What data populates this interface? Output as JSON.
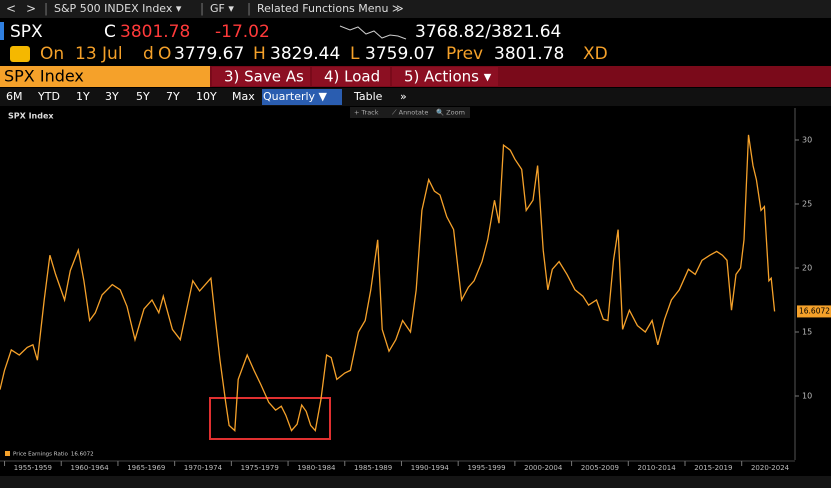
{
  "toolbar": {
    "back": "<",
    "forward": ">",
    "security": "S&P 500 INDEX Index ▾",
    "function": "GF ▾",
    "menu": "Related Functions Menu ≫"
  },
  "quote": {
    "ticker": "SPX",
    "close_label": "C",
    "close": "3801.78",
    "change": "-17.02",
    "range": "3768.82/3821.64"
  },
  "details": {
    "on": "On",
    "date": "13 Jul",
    "d": "d",
    "open_label": "O",
    "open": "3779.67",
    "high_label": "H",
    "high": "3829.44",
    "low_label": "L",
    "low": "3759.07",
    "prev_label": "Prev",
    "prev": "3801.78",
    "xd": "XD"
  },
  "command_bar": {
    "security": "SPX Index",
    "buttons": [
      "3) Save As",
      "4) Load",
      "5) Actions ▾"
    ]
  },
  "periods": [
    "6M",
    "YTD",
    "1Y",
    "3Y",
    "5Y",
    "7Y",
    "10Y",
    "Max",
    "Quarterly ▼",
    "Table",
    "»"
  ],
  "chart_tools": [
    "+ Track",
    "⟋ Annotate",
    "🔍 Zoom"
  ],
  "chart_data": {
    "type": "line",
    "title": "SPX Index",
    "x": [
      1954.6,
      1955.0,
      1955.6,
      1956.3,
      1957.0,
      1957.5,
      1957.9,
      1958.5,
      1959.0,
      1959.5,
      1960.3,
      1960.8,
      1961.5,
      1962.0,
      1962.5,
      1963.0,
      1963.6,
      1964.5,
      1965.2,
      1965.8,
      1966.5,
      1967.3,
      1968.0,
      1968.6,
      1969.0,
      1969.8,
      1970.5,
      1971.0,
      1971.6,
      1972.2,
      1972.7,
      1973.2,
      1973.6,
      1974.0,
      1974.5,
      1974.8,
      1975.3,
      1975.6,
      1976.4,
      1977.0,
      1977.6,
      1978.3,
      1978.9,
      1979.4,
      1979.8,
      1980.3,
      1980.8,
      1981.2,
      1981.6,
      1982.0,
      1982.4,
      1982.9,
      1983.4,
      1983.8,
      1984.3,
      1985.0,
      1985.5,
      1986.2,
      1986.8,
      1987.3,
      1987.9,
      1988.3,
      1988.9,
      1989.5,
      1990.1,
      1990.8,
      1991.3,
      1991.8,
      1992.4,
      1992.9,
      1993.4,
      1994.0,
      1994.6,
      1995.3,
      1995.9,
      1996.4,
      1997.1,
      1997.6,
      1998.2,
      1998.6,
      1999.0,
      1999.6,
      2000.0,
      2000.6,
      2001.0,
      2001.6,
      2002.0,
      2002.5,
      2002.9,
      2003.3,
      2003.9,
      2004.6,
      2005.3,
      2006.0,
      2006.5,
      2007.2,
      2007.8,
      2008.2,
      2008.7,
      2009.1,
      2009.5,
      2010.1,
      2010.8,
      2011.5,
      2012.1,
      2012.6,
      2013.2,
      2013.8,
      2014.5,
      2015.3,
      2015.9,
      2016.5,
      2017.2,
      2017.8,
      2018.3,
      2018.7,
      2019.1,
      2019.5,
      2019.9,
      2020.2,
      2020.6,
      2021.0,
      2021.3,
      2021.7,
      2022.0,
      2022.4,
      2022.6,
      2022.9
    ],
    "series": [
      {
        "name": "Price Earnings Ratio",
        "color": "#f5a12a",
        "values": [
          10.5,
          12.0,
          13.6,
          13.2,
          13.8,
          14.0,
          12.8,
          17.5,
          21.0,
          19.5,
          17.5,
          19.8,
          21.4,
          19.0,
          15.9,
          16.5,
          17.9,
          18.7,
          18.3,
          17.0,
          14.4,
          16.8,
          17.5,
          16.5,
          17.8,
          15.2,
          14.4,
          16.5,
          19.0,
          18.2,
          18.7,
          19.2,
          15.9,
          12.8,
          9.5,
          7.7,
          7.3,
          11.3,
          13.2,
          12.0,
          10.9,
          9.5,
          8.9,
          9.2,
          8.5,
          7.3,
          7.8,
          9.3,
          8.8,
          7.7,
          7.3,
          9.7,
          13.2,
          13.0,
          11.3,
          11.8,
          12.0,
          15.0,
          15.9,
          18.3,
          22.2,
          15.2,
          13.5,
          14.4,
          15.9,
          15.0,
          18.3,
          24.5,
          26.9,
          26.0,
          25.7,
          24.0,
          23.0,
          17.5,
          18.5,
          19.0,
          20.5,
          22.2,
          25.3,
          23.5,
          29.6,
          29.2,
          28.5,
          27.7,
          24.5,
          25.3,
          28.0,
          21.4,
          18.3,
          19.9,
          20.5,
          19.5,
          18.3,
          17.8,
          17.1,
          17.5,
          16.0,
          15.9,
          20.6,
          23.0,
          15.2,
          16.7,
          15.5,
          15.0,
          15.9,
          14.0,
          16.0,
          17.5,
          18.3,
          19.9,
          19.5,
          20.6,
          21.0,
          21.3,
          21.0,
          20.6,
          16.7,
          19.5,
          20.0,
          22.2,
          30.4,
          28.0,
          26.9,
          24.5,
          24.8,
          19.0,
          19.2,
          16.6072
        ]
      }
    ],
    "xlim": [
      1954.6,
      2024.7
    ],
    "ylim": [
      5,
      32.5
    ],
    "yticks": [
      10,
      15,
      20,
      25,
      30
    ],
    "xticks": [
      {
        "value": 1957.5,
        "label": "1955-1959"
      },
      {
        "value": 1962.5,
        "label": "1960-1964"
      },
      {
        "value": 1967.5,
        "label": "1965-1969"
      },
      {
        "value": 1972.5,
        "label": "1970-1974"
      },
      {
        "value": 1977.5,
        "label": "1975-1979"
      },
      {
        "value": 1982.5,
        "label": "1980-1984"
      },
      {
        "value": 1987.5,
        "label": "1985-1989"
      },
      {
        "value": 1992.5,
        "label": "1990-1994"
      },
      {
        "value": 1997.5,
        "label": "1995-1999"
      },
      {
        "value": 2002.5,
        "label": "2000-2004"
      },
      {
        "value": 2007.5,
        "label": "2005-2009"
      },
      {
        "value": 2012.5,
        "label": "2010-2014"
      },
      {
        "value": 2017.5,
        "label": "2015-2019"
      },
      {
        "value": 2022.5,
        "label": "2020-2024"
      }
    ],
    "grid": false
  }
}
